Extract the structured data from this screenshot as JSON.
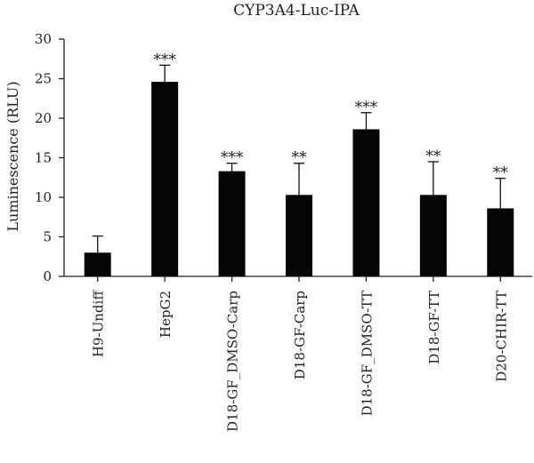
{
  "chart_data": {
    "type": "bar",
    "title": "CYP3A4-Luc-IPA",
    "xlabel": "",
    "ylabel": "Luminescence (RLU)",
    "ylim": [
      0,
      30
    ],
    "yticks": [
      0,
      5,
      10,
      15,
      20,
      25,
      30
    ],
    "categories": [
      "H9-Undiff",
      "HepG2",
      "D18-GF_DMSO-Carp",
      "D18-GF-Carp",
      "D18-GF_DMSO-TT",
      "D18-GF-TT",
      "D20-CHIR-TT"
    ],
    "values": [
      3.0,
      24.6,
      13.3,
      10.3,
      18.6,
      10.3,
      8.6
    ],
    "errors": [
      2.1,
      2.1,
      1.0,
      4.0,
      2.1,
      4.2,
      3.8
    ],
    "significance": [
      "",
      "***",
      "***",
      "**",
      "***",
      "**",
      "**"
    ],
    "bar_color": "#050505",
    "grid": false,
    "legend": "none"
  }
}
